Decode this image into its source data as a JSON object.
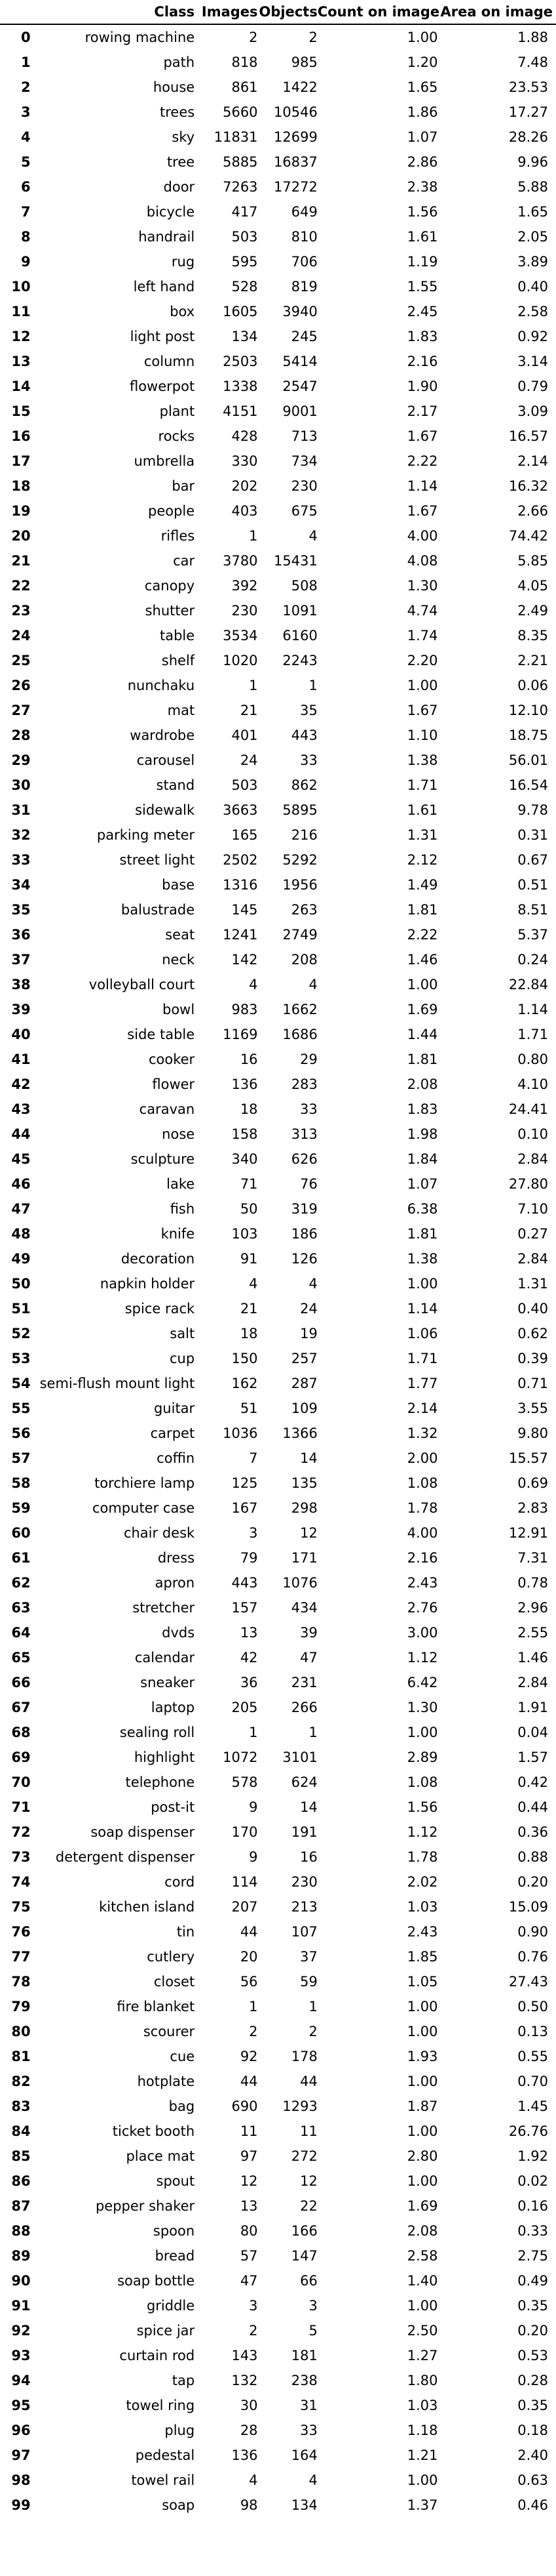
{
  "table": {
    "headers": {
      "index": "",
      "class": "Class",
      "images": "Images",
      "objects": "Objects",
      "count_on_image": "Count on image",
      "area_on_image": "Area on image"
    },
    "rows": [
      [
        "0",
        "rowing machine",
        "2",
        "2",
        "1.00",
        "1.88"
      ],
      [
        "1",
        "path",
        "818",
        "985",
        "1.20",
        "7.48"
      ],
      [
        "2",
        "house",
        "861",
        "1422",
        "1.65",
        "23.53"
      ],
      [
        "3",
        "trees",
        "5660",
        "10546",
        "1.86",
        "17.27"
      ],
      [
        "4",
        "sky",
        "11831",
        "12699",
        "1.07",
        "28.26"
      ],
      [
        "5",
        "tree",
        "5885",
        "16837",
        "2.86",
        "9.96"
      ],
      [
        "6",
        "door",
        "7263",
        "17272",
        "2.38",
        "5.88"
      ],
      [
        "7",
        "bicycle",
        "417",
        "649",
        "1.56",
        "1.65"
      ],
      [
        "8",
        "handrail",
        "503",
        "810",
        "1.61",
        "2.05"
      ],
      [
        "9",
        "rug",
        "595",
        "706",
        "1.19",
        "3.89"
      ],
      [
        "10",
        "left hand",
        "528",
        "819",
        "1.55",
        "0.40"
      ],
      [
        "11",
        "box",
        "1605",
        "3940",
        "2.45",
        "2.58"
      ],
      [
        "12",
        "light post",
        "134",
        "245",
        "1.83",
        "0.92"
      ],
      [
        "13",
        "column",
        "2503",
        "5414",
        "2.16",
        "3.14"
      ],
      [
        "14",
        "flowerpot",
        "1338",
        "2547",
        "1.90",
        "0.79"
      ],
      [
        "15",
        "plant",
        "4151",
        "9001",
        "2.17",
        "3.09"
      ],
      [
        "16",
        "rocks",
        "428",
        "713",
        "1.67",
        "16.57"
      ],
      [
        "17",
        "umbrella",
        "330",
        "734",
        "2.22",
        "2.14"
      ],
      [
        "18",
        "bar",
        "202",
        "230",
        "1.14",
        "16.32"
      ],
      [
        "19",
        "people",
        "403",
        "675",
        "1.67",
        "2.66"
      ],
      [
        "20",
        "rifles",
        "1",
        "4",
        "4.00",
        "74.42"
      ],
      [
        "21",
        "car",
        "3780",
        "15431",
        "4.08",
        "5.85"
      ],
      [
        "22",
        "canopy",
        "392",
        "508",
        "1.30",
        "4.05"
      ],
      [
        "23",
        "shutter",
        "230",
        "1091",
        "4.74",
        "2.49"
      ],
      [
        "24",
        "table",
        "3534",
        "6160",
        "1.74",
        "8.35"
      ],
      [
        "25",
        "shelf",
        "1020",
        "2243",
        "2.20",
        "2.21"
      ],
      [
        "26",
        "nunchaku",
        "1",
        "1",
        "1.00",
        "0.06"
      ],
      [
        "27",
        "mat",
        "21",
        "35",
        "1.67",
        "12.10"
      ],
      [
        "28",
        "wardrobe",
        "401",
        "443",
        "1.10",
        "18.75"
      ],
      [
        "29",
        "carousel",
        "24",
        "33",
        "1.38",
        "56.01"
      ],
      [
        "30",
        "stand",
        "503",
        "862",
        "1.71",
        "16.54"
      ],
      [
        "31",
        "sidewalk",
        "3663",
        "5895",
        "1.61",
        "9.78"
      ],
      [
        "32",
        "parking meter",
        "165",
        "216",
        "1.31",
        "0.31"
      ],
      [
        "33",
        "street light",
        "2502",
        "5292",
        "2.12",
        "0.67"
      ],
      [
        "34",
        "base",
        "1316",
        "1956",
        "1.49",
        "0.51"
      ],
      [
        "35",
        "balustrade",
        "145",
        "263",
        "1.81",
        "8.51"
      ],
      [
        "36",
        "seat",
        "1241",
        "2749",
        "2.22",
        "5.37"
      ],
      [
        "37",
        "neck",
        "142",
        "208",
        "1.46",
        "0.24"
      ],
      [
        "38",
        "volleyball court",
        "4",
        "4",
        "1.00",
        "22.84"
      ],
      [
        "39",
        "bowl",
        "983",
        "1662",
        "1.69",
        "1.14"
      ],
      [
        "40",
        "side table",
        "1169",
        "1686",
        "1.44",
        "1.71"
      ],
      [
        "41",
        "cooker",
        "16",
        "29",
        "1.81",
        "0.80"
      ],
      [
        "42",
        "flower",
        "136",
        "283",
        "2.08",
        "4.10"
      ],
      [
        "43",
        "caravan",
        "18",
        "33",
        "1.83",
        "24.41"
      ],
      [
        "44",
        "nose",
        "158",
        "313",
        "1.98",
        "0.10"
      ],
      [
        "45",
        "sculpture",
        "340",
        "626",
        "1.84",
        "2.84"
      ],
      [
        "46",
        "lake",
        "71",
        "76",
        "1.07",
        "27.80"
      ],
      [
        "47",
        "fish",
        "50",
        "319",
        "6.38",
        "7.10"
      ],
      [
        "48",
        "knife",
        "103",
        "186",
        "1.81",
        "0.27"
      ],
      [
        "49",
        "decoration",
        "91",
        "126",
        "1.38",
        "2.84"
      ],
      [
        "50",
        "napkin holder",
        "4",
        "4",
        "1.00",
        "1.31"
      ],
      [
        "51",
        "spice rack",
        "21",
        "24",
        "1.14",
        "0.40"
      ],
      [
        "52",
        "salt",
        "18",
        "19",
        "1.06",
        "0.62"
      ],
      [
        "53",
        "cup",
        "150",
        "257",
        "1.71",
        "0.39"
      ],
      [
        "54",
        "semi-flush mount light",
        "162",
        "287",
        "1.77",
        "0.71"
      ],
      [
        "55",
        "guitar",
        "51",
        "109",
        "2.14",
        "3.55"
      ],
      [
        "56",
        "carpet",
        "1036",
        "1366",
        "1.32",
        "9.80"
      ],
      [
        "57",
        "coffin",
        "7",
        "14",
        "2.00",
        "15.57"
      ],
      [
        "58",
        "torchiere lamp",
        "125",
        "135",
        "1.08",
        "0.69"
      ],
      [
        "59",
        "computer case",
        "167",
        "298",
        "1.78",
        "2.83"
      ],
      [
        "60",
        "chair desk",
        "3",
        "12",
        "4.00",
        "12.91"
      ],
      [
        "61",
        "dress",
        "79",
        "171",
        "2.16",
        "7.31"
      ],
      [
        "62",
        "apron",
        "443",
        "1076",
        "2.43",
        "0.78"
      ],
      [
        "63",
        "stretcher",
        "157",
        "434",
        "2.76",
        "2.96"
      ],
      [
        "64",
        "dvds",
        "13",
        "39",
        "3.00",
        "2.55"
      ],
      [
        "65",
        "calendar",
        "42",
        "47",
        "1.12",
        "1.46"
      ],
      [
        "66",
        "sneaker",
        "36",
        "231",
        "6.42",
        "2.84"
      ],
      [
        "67",
        "laptop",
        "205",
        "266",
        "1.30",
        "1.91"
      ],
      [
        "68",
        "sealing roll",
        "1",
        "1",
        "1.00",
        "0.04"
      ],
      [
        "69",
        "highlight",
        "1072",
        "3101",
        "2.89",
        "1.57"
      ],
      [
        "70",
        "telephone",
        "578",
        "624",
        "1.08",
        "0.42"
      ],
      [
        "71",
        "post-it",
        "9",
        "14",
        "1.56",
        "0.44"
      ],
      [
        "72",
        "soap dispenser",
        "170",
        "191",
        "1.12",
        "0.36"
      ],
      [
        "73",
        "detergent dispenser",
        "9",
        "16",
        "1.78",
        "0.88"
      ],
      [
        "74",
        "cord",
        "114",
        "230",
        "2.02",
        "0.20"
      ],
      [
        "75",
        "kitchen island",
        "207",
        "213",
        "1.03",
        "15.09"
      ],
      [
        "76",
        "tin",
        "44",
        "107",
        "2.43",
        "0.90"
      ],
      [
        "77",
        "cutlery",
        "20",
        "37",
        "1.85",
        "0.76"
      ],
      [
        "78",
        "closet",
        "56",
        "59",
        "1.05",
        "27.43"
      ],
      [
        "79",
        "fire blanket",
        "1",
        "1",
        "1.00",
        "0.50"
      ],
      [
        "80",
        "scourer",
        "2",
        "2",
        "1.00",
        "0.13"
      ],
      [
        "81",
        "cue",
        "92",
        "178",
        "1.93",
        "0.55"
      ],
      [
        "82",
        "hotplate",
        "44",
        "44",
        "1.00",
        "0.70"
      ],
      [
        "83",
        "bag",
        "690",
        "1293",
        "1.87",
        "1.45"
      ],
      [
        "84",
        "ticket booth",
        "11",
        "11",
        "1.00",
        "26.76"
      ],
      [
        "85",
        "place mat",
        "97",
        "272",
        "2.80",
        "1.92"
      ],
      [
        "86",
        "spout",
        "12",
        "12",
        "1.00",
        "0.02"
      ],
      [
        "87",
        "pepper shaker",
        "13",
        "22",
        "1.69",
        "0.16"
      ],
      [
        "88",
        "spoon",
        "80",
        "166",
        "2.08",
        "0.33"
      ],
      [
        "89",
        "bread",
        "57",
        "147",
        "2.58",
        "2.75"
      ],
      [
        "90",
        "soap bottle",
        "47",
        "66",
        "1.40",
        "0.49"
      ],
      [
        "91",
        "griddle",
        "3",
        "3",
        "1.00",
        "0.35"
      ],
      [
        "92",
        "spice jar",
        "2",
        "5",
        "2.50",
        "0.20"
      ],
      [
        "93",
        "curtain rod",
        "143",
        "181",
        "1.27",
        "0.53"
      ],
      [
        "94",
        "tap",
        "132",
        "238",
        "1.80",
        "0.28"
      ],
      [
        "95",
        "towel ring",
        "30",
        "31",
        "1.03",
        "0.35"
      ],
      [
        "96",
        "plug",
        "28",
        "33",
        "1.18",
        "0.18"
      ],
      [
        "97",
        "pedestal",
        "136",
        "164",
        "1.21",
        "2.40"
      ],
      [
        "98",
        "towel rail",
        "4",
        "4",
        "1.00",
        "0.63"
      ],
      [
        "99",
        "soap",
        "98",
        "134",
        "1.37",
        "0.46"
      ]
    ]
  }
}
